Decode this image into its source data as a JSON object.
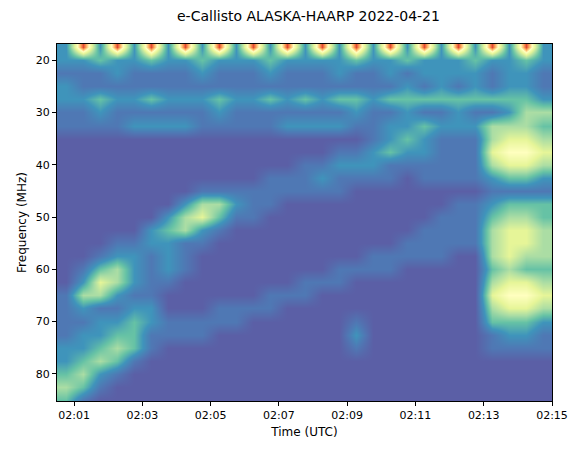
{
  "chart_data": {
    "type": "heatmap",
    "title": "e-Callisto ALASKA-HAARP 2022-04-21",
    "xlabel": "Time (UTC)",
    "ylabel": "Frequency (MHz)",
    "xlim": [
      0.5,
      15
    ],
    "xticks": [
      {
        "value": 1,
        "label": "02:01"
      },
      {
        "value": 3,
        "label": "02:03"
      },
      {
        "value": 5,
        "label": "02:05"
      },
      {
        "value": 7,
        "label": "02:07"
      },
      {
        "value": 9,
        "label": "02:09"
      },
      {
        "value": 11,
        "label": "02:11"
      },
      {
        "value": 13,
        "label": "02:13"
      },
      {
        "value": 15,
        "label": "02:15"
      }
    ],
    "ylim": [
      85.2,
      16.9
    ],
    "yticks": [
      20,
      30,
      40,
      50,
      60,
      70,
      80
    ],
    "zlim": [
      0,
      10
    ],
    "colors": [
      "#5e4fa2",
      "#5b5fa6",
      "#4f78b4",
      "#3f94bb",
      "#66c2a5",
      "#abdda4",
      "#e6f598",
      "#ffffbf",
      "#fdae61",
      "#e34a33",
      "#9e0142"
    ],
    "x": [
      0.75,
      1.25,
      1.75,
      2.25,
      2.75,
      3.25,
      3.75,
      4.25,
      4.75,
      5.25,
      5.75,
      6.25,
      6.75,
      7.25,
      7.75,
      8.25,
      8.75,
      9.25,
      9.75,
      10.25,
      10.75,
      11.25,
      11.75,
      12.25,
      12.75,
      13.25,
      13.75,
      14.25,
      14.75
    ],
    "y": [
      17.5,
      20,
      22.5,
      25,
      27.5,
      30,
      32.5,
      35,
      37.5,
      40,
      42.5,
      45,
      47.5,
      50,
      52.5,
      55,
      57.5,
      60,
      62.5,
      65,
      67.5,
      70,
      72.5,
      75,
      77.5,
      80,
      82.5,
      85
    ],
    "z": [
      [
        3,
        9,
        3,
        9,
        3,
        9,
        3,
        9,
        3,
        9,
        3,
        9,
        3,
        9,
        3,
        9,
        3,
        9,
        3,
        9,
        3,
        9,
        3,
        9,
        3,
        9,
        3,
        9,
        3
      ],
      [
        3,
        3,
        4,
        3,
        3,
        4,
        3,
        3,
        4,
        3,
        3,
        3,
        4,
        3,
        3,
        3,
        3,
        4,
        3,
        3,
        4,
        3,
        3,
        3,
        4,
        3,
        3,
        4,
        3
      ],
      [
        2,
        2,
        2,
        3,
        2,
        2,
        2,
        2,
        3,
        2,
        2,
        2,
        3,
        2,
        2,
        2,
        3,
        2,
        2,
        3,
        2,
        3,
        3,
        3,
        3,
        2,
        3,
        3,
        2
      ],
      [
        3,
        2,
        2,
        2,
        2,
        2,
        2,
        2,
        2,
        2,
        2,
        2,
        2,
        2,
        2,
        2,
        2,
        2,
        2,
        2,
        3,
        2,
        3,
        2,
        3,
        2,
        3,
        3,
        2
      ],
      [
        3,
        3,
        4,
        3,
        3,
        4,
        3,
        3,
        3,
        4,
        3,
        3,
        4,
        3,
        4,
        3,
        4,
        4,
        3,
        4,
        4,
        4,
        4,
        4,
        4,
        4,
        4,
        4,
        3
      ],
      [
        2,
        2,
        3,
        2,
        2,
        2,
        2,
        2,
        2,
        3,
        2,
        2,
        2,
        2,
        2,
        2,
        2,
        3,
        2,
        2,
        3,
        2,
        2,
        3,
        2,
        2,
        3,
        5,
        5
      ],
      [
        2,
        2,
        2,
        2,
        3,
        3,
        3,
        3,
        2,
        2,
        2,
        2,
        2,
        3,
        3,
        3,
        3,
        2,
        2,
        3,
        3,
        4,
        3,
        3,
        3,
        5,
        5,
        5,
        4
      ],
      [
        1,
        1,
        1,
        1,
        1,
        1,
        1,
        1,
        1,
        1,
        1,
        1,
        1,
        1,
        1,
        1,
        1,
        1,
        2,
        3,
        4,
        3,
        2,
        2,
        2,
        5,
        6,
        6,
        5
      ],
      [
        1,
        1,
        1,
        1,
        1,
        1,
        1,
        1,
        1,
        1,
        1,
        1,
        1,
        1,
        1,
        1,
        2,
        2,
        3,
        4,
        3,
        3,
        2,
        2,
        2,
        6,
        7,
        7,
        6
      ],
      [
        1,
        1,
        1,
        1,
        1,
        1,
        1,
        1,
        1,
        1,
        1,
        1,
        1,
        1,
        2,
        2,
        3,
        3,
        3,
        2,
        2,
        2,
        2,
        2,
        2,
        5,
        6,
        6,
        5
      ],
      [
        1,
        1,
        1,
        1,
        1,
        1,
        1,
        1,
        1,
        1,
        1,
        1,
        2,
        2,
        2,
        3,
        2,
        2,
        2,
        2,
        1,
        2,
        2,
        2,
        2,
        3,
        4,
        4,
        3
      ],
      [
        1,
        1,
        1,
        1,
        1,
        1,
        1,
        1,
        2,
        2,
        2,
        2,
        2,
        2,
        2,
        2,
        2,
        1,
        1,
        1,
        1,
        1,
        1,
        1,
        1,
        2,
        2,
        2,
        2
      ],
      [
        1,
        1,
        1,
        1,
        1,
        1,
        1,
        3,
        5,
        5,
        3,
        2,
        2,
        1,
        1,
        1,
        1,
        1,
        1,
        1,
        1,
        1,
        1,
        2,
        2,
        3,
        4,
        4,
        4
      ],
      [
        1,
        1,
        1,
        1,
        1,
        1,
        3,
        5,
        6,
        4,
        2,
        2,
        1,
        1,
        1,
        1,
        1,
        1,
        1,
        1,
        1,
        1,
        2,
        2,
        2,
        4,
        5,
        5,
        4
      ],
      [
        1,
        1,
        1,
        1,
        1,
        3,
        4,
        5,
        3,
        2,
        1,
        1,
        1,
        1,
        1,
        1,
        1,
        1,
        1,
        1,
        1,
        2,
        2,
        2,
        2,
        5,
        6,
        6,
        5
      ],
      [
        1,
        1,
        1,
        2,
        2,
        3,
        3,
        2,
        2,
        1,
        1,
        1,
        1,
        1,
        1,
        1,
        1,
        1,
        1,
        1,
        2,
        2,
        2,
        2,
        2,
        5,
        6,
        6,
        5
      ],
      [
        1,
        1,
        2,
        3,
        3,
        2,
        3,
        2,
        1,
        1,
        1,
        1,
        1,
        1,
        1,
        1,
        1,
        1,
        2,
        2,
        2,
        2,
        2,
        1,
        1,
        5,
        6,
        5,
        5
      ],
      [
        1,
        2,
        4,
        5,
        3,
        2,
        3,
        2,
        1,
        1,
        1,
        1,
        1,
        1,
        1,
        1,
        2,
        2,
        2,
        2,
        1,
        1,
        1,
        1,
        1,
        4,
        5,
        4,
        4
      ],
      [
        1,
        3,
        6,
        5,
        3,
        2,
        2,
        1,
        1,
        1,
        1,
        1,
        1,
        1,
        2,
        2,
        2,
        1,
        1,
        1,
        1,
        1,
        1,
        1,
        1,
        5,
        6,
        6,
        5
      ],
      [
        2,
        5,
        5,
        3,
        2,
        2,
        1,
        1,
        1,
        1,
        1,
        1,
        2,
        2,
        2,
        1,
        1,
        1,
        1,
        1,
        1,
        1,
        1,
        1,
        1,
        6,
        7,
        7,
        6
      ],
      [
        2,
        3,
        2,
        2,
        3,
        3,
        1,
        1,
        1,
        2,
        2,
        2,
        2,
        1,
        1,
        1,
        1,
        1,
        1,
        1,
        1,
        1,
        1,
        1,
        1,
        5,
        6,
        6,
        5
      ],
      [
        2,
        2,
        3,
        3,
        4,
        3,
        2,
        2,
        2,
        2,
        2,
        1,
        1,
        1,
        1,
        1,
        1,
        2,
        1,
        1,
        1,
        1,
        1,
        1,
        1,
        4,
        4,
        4,
        3
      ],
      [
        2,
        3,
        3,
        4,
        4,
        2,
        2,
        2,
        2,
        1,
        1,
        1,
        1,
        1,
        1,
        1,
        1,
        3,
        1,
        1,
        1,
        1,
        1,
        1,
        1,
        2,
        3,
        3,
        2
      ],
      [
        3,
        3,
        4,
        5,
        4,
        2,
        1,
        1,
        1,
        1,
        1,
        1,
        1,
        1,
        1,
        1,
        1,
        2,
        1,
        1,
        1,
        1,
        1,
        1,
        1,
        2,
        2,
        2,
        2
      ],
      [
        3,
        4,
        5,
        4,
        2,
        1,
        1,
        1,
        1,
        1,
        1,
        1,
        1,
        1,
        1,
        1,
        1,
        1,
        1,
        1,
        1,
        1,
        1,
        1,
        1,
        1,
        1,
        1,
        1
      ],
      [
        4,
        5,
        3,
        2,
        1,
        1,
        1,
        1,
        1,
        1,
        1,
        1,
        1,
        1,
        1,
        1,
        1,
        1,
        1,
        1,
        1,
        1,
        1,
        1,
        1,
        1,
        1,
        1,
        1
      ],
      [
        5,
        4,
        2,
        1,
        1,
        1,
        1,
        1,
        1,
        1,
        1,
        1,
        1,
        1,
        1,
        1,
        1,
        1,
        1,
        1,
        1,
        1,
        1,
        1,
        1,
        1,
        1,
        1,
        1
      ],
      [
        4,
        2,
        1,
        1,
        1,
        1,
        1,
        1,
        1,
        1,
        1,
        1,
        1,
        1,
        1,
        1,
        1,
        1,
        1,
        1,
        1,
        1,
        1,
        1,
        1,
        1,
        1,
        1,
        1
      ]
    ]
  }
}
